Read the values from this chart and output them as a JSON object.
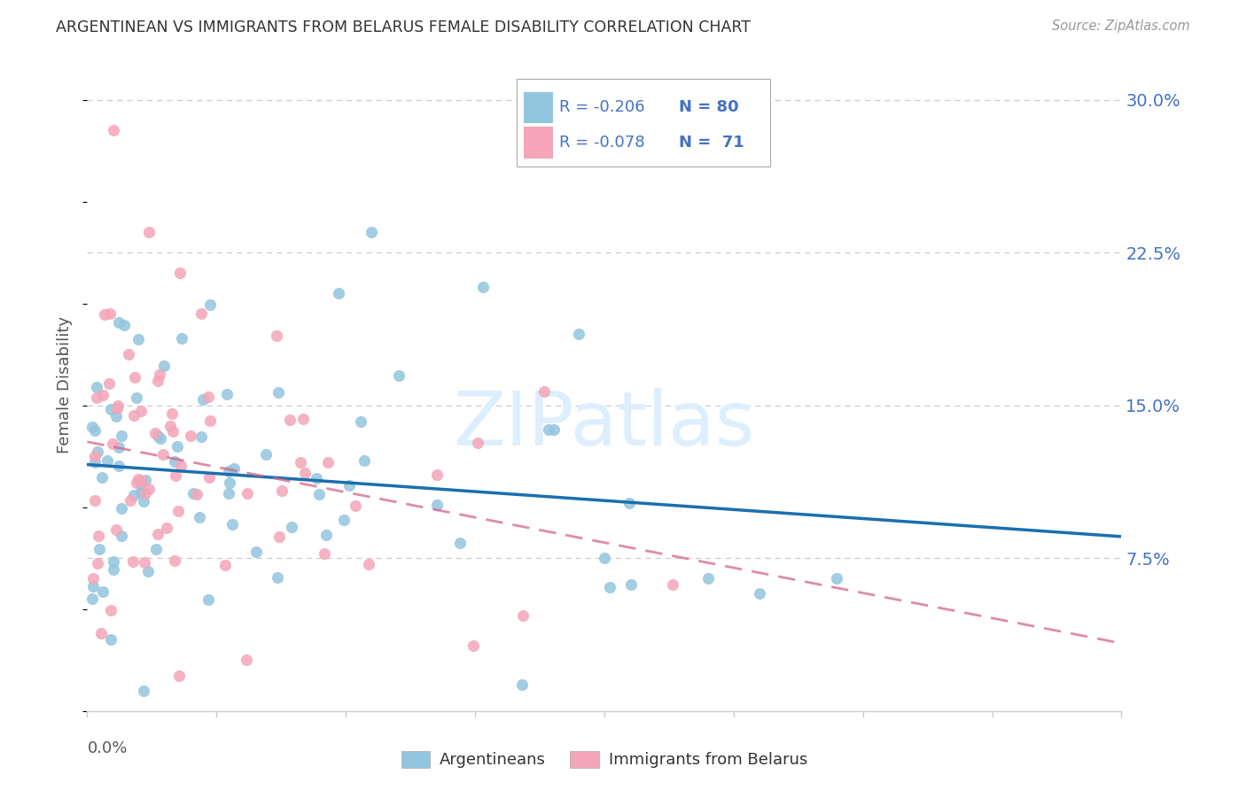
{
  "title": "ARGENTINEAN VS IMMIGRANTS FROM BELARUS FEMALE DISABILITY CORRELATION CHART",
  "source": "Source: ZipAtlas.com",
  "ylabel": "Female Disability",
  "ytick_labels": [
    "30.0%",
    "22.5%",
    "15.0%",
    "7.5%"
  ],
  "ytick_values": [
    0.3,
    0.225,
    0.15,
    0.075
  ],
  "xlim": [
    0.0,
    0.2
  ],
  "ylim": [
    0.0,
    0.32
  ],
  "blue_color": "#92c5de",
  "pink_color": "#f4a5b8",
  "blue_line_color": "#1a6faf",
  "pink_line_color": "#d4648a",
  "grid_color": "#cccccc",
  "title_color": "#333333",
  "source_color": "#999999",
  "axis_label_color": "#555555",
  "right_tick_color": "#4472c4",
  "watermark_color": "#ddeeff",
  "legend_edge_color": "#aaaaaa"
}
